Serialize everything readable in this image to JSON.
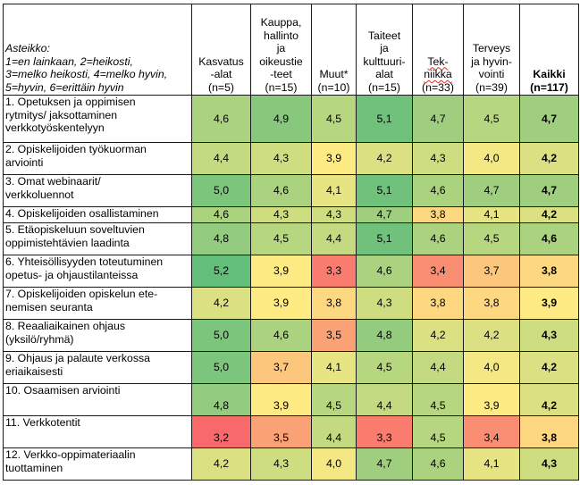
{
  "table": {
    "scale_title": "Asteikko:",
    "scale_lines": [
      "1=en lainkaan, 2=heikosti,",
      "3=melko heikosti, 4=melko hyvin,",
      "5=hyvin, 6=erittäin hyvin"
    ],
    "columns": [
      {
        "lines": [
          "Kasvatus",
          "-alat",
          "(n=5)"
        ]
      },
      {
        "lines": [
          "Kauppa,",
          "hallinto",
          "ja",
          "oikeustie",
          "-teet",
          "(n=15)"
        ]
      },
      {
        "lines": [
          "Muut*",
          "(n=10)"
        ]
      },
      {
        "lines": [
          "Taiteet",
          "ja",
          "kulttuuri-",
          "alat",
          "(n=15)"
        ]
      },
      {
        "lines": [
          "Tek-",
          "niikka",
          "(n=33)"
        ]
      },
      {
        "lines": [
          "Terveys",
          "ja hyvin-",
          "vointi",
          "(n=39)"
        ]
      },
      {
        "lines": [
          "Kaikki",
          "(n=117)"
        ]
      }
    ],
    "rows": [
      {
        "lines": [
          "1. Opetuksen ja oppimisen",
          "rytmitys/ jaksottaminen",
          "verkkotyöskentelyyn"
        ],
        "values": [
          "4,6",
          "4,9",
          "4,5",
          "5,1",
          "4,7",
          "4,5",
          "4,7"
        ]
      },
      {
        "lines": [
          "2. Opiskelijoiden työkuorman",
          "arviointi"
        ],
        "values": [
          "4,4",
          "4,3",
          "3,9",
          "4,2",
          "4,3",
          "4,0",
          "4,2"
        ]
      },
      {
        "lines": [
          "3. Omat webinaarit/",
          "verkkoluennot"
        ],
        "values": [
          "5,0",
          "4,6",
          "4,1",
          "5,1",
          "4,6",
          "4,7",
          "4,7"
        ]
      },
      {
        "lines": [
          "4. Opiskelijoiden osallistaminen"
        ],
        "values": [
          "4,6",
          "4,3",
          "4,3",
          "4,7",
          "3,8",
          "4,1",
          "4,2"
        ]
      },
      {
        "lines": [
          "5. Etäopiskeluun soveltuvien",
          "oppimistehtävien laadinta"
        ],
        "values": [
          "4,8",
          "4,5",
          "4,4",
          "5,1",
          "4,6",
          "4,5",
          "4,6"
        ]
      },
      {
        "lines": [
          "6. Yhteisöllisyyden toteutuminen",
          "opetus- ja ohjaustilanteissa"
        ],
        "values": [
          "5,2",
          "3,9",
          "3,3",
          "4,6",
          "3,4",
          "3,7",
          "3,8"
        ]
      },
      {
        "lines": [
          "7. Opiskelijoiden opiskelun ete-",
          "nemisen seuranta"
        ],
        "values": [
          "4,2",
          "3,9",
          "3,8",
          "4,3",
          "3,8",
          "3,8",
          "3,9"
        ]
      },
      {
        "lines": [
          "8. Reaaliaikainen ohjaus",
          "(yksilö/ryhmä)"
        ],
        "values": [
          "5,0",
          "4,6",
          "3,5",
          "4,8",
          "4,2",
          "4,2",
          "4,3"
        ]
      },
      {
        "lines": [
          "9. Ohjaus ja palaute verkossa",
          "eriaikaisesti"
        ],
        "values": [
          "5,0",
          "3,7",
          "4,1",
          "4,5",
          "4,4",
          "4,0",
          "4,2"
        ]
      },
      {
        "lines": [
          "10. Osaamisen arviointi"
        ],
        "values": [
          "4,8",
          "3,9",
          "4,5",
          "4,4",
          "4,5",
          "3,9",
          "4,2"
        ]
      },
      {
        "lines": [
          "11. Verkkotentit"
        ],
        "values": [
          "3,2",
          "3,5",
          "4,4",
          "3,3",
          "4,5",
          "3,4",
          "3,8"
        ]
      },
      {
        "lines": [
          "12. Verkko-oppimateriaalin",
          "tuottaminen"
        ],
        "values": [
          "4,2",
          "4,3",
          "4,0",
          "4,7",
          "4,6",
          "4,1",
          "4,3"
        ]
      }
    ],
    "color_scale": {
      "min_value": 3.2,
      "min_color": "#f8696b",
      "mid_value": 3.9,
      "mid_color": "#ffeb84",
      "max_value": 5.2,
      "max_color": "#63be7b"
    }
  }
}
